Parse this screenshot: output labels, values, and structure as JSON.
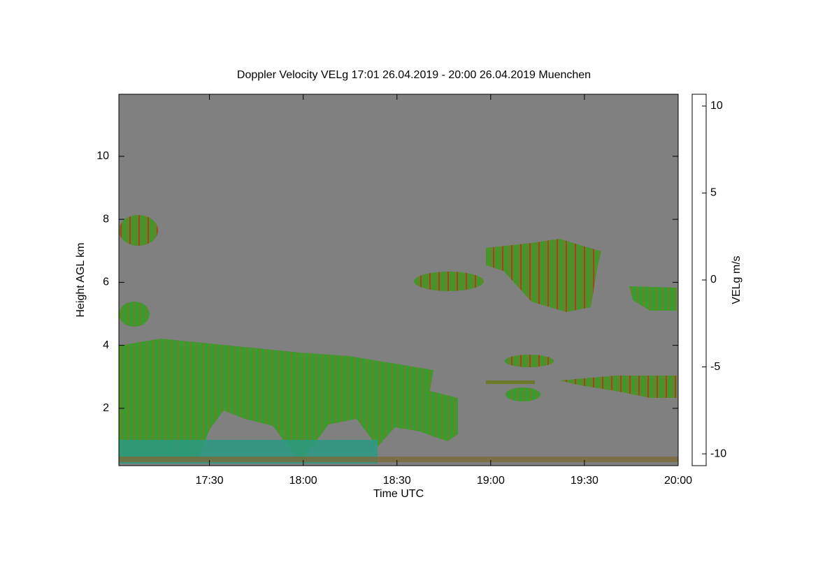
{
  "chart_data": {
    "type": "heatmap",
    "title": "Doppler Velocity VELg   17:01 26.04.2019 - 20:00 26.04.2019 Muenchen",
    "x_label": "Time UTC",
    "y_label": "Height AGL km",
    "colorbar_label": "VELg m/s",
    "xlim": [
      17.0167,
      20.0
    ],
    "xticks": [
      {
        "value": 17.5,
        "label": "17:30"
      },
      {
        "value": 18.0,
        "label": "18:00"
      },
      {
        "value": 18.5,
        "label": "18:30"
      },
      {
        "value": 19.0,
        "label": "19:00"
      },
      {
        "value": 19.5,
        "label": "19:30"
      },
      {
        "value": 20.0,
        "label": "20:00"
      }
    ],
    "ylim": [
      0.18,
      11.97
    ],
    "yticks": [
      2,
      4,
      6,
      8,
      10
    ],
    "clim": [
      -10.68,
      10.68
    ],
    "cticks": [
      -10,
      -5,
      0,
      5,
      10
    ],
    "colormap": [
      "#000000",
      "#0a1a5a",
      "#1a7a8a",
      "#20a060",
      "#30a030",
      "#6a7a20",
      "#c02010",
      "#e06010",
      "#f0a000",
      "#ffff00"
    ],
    "background": "#808080"
  }
}
